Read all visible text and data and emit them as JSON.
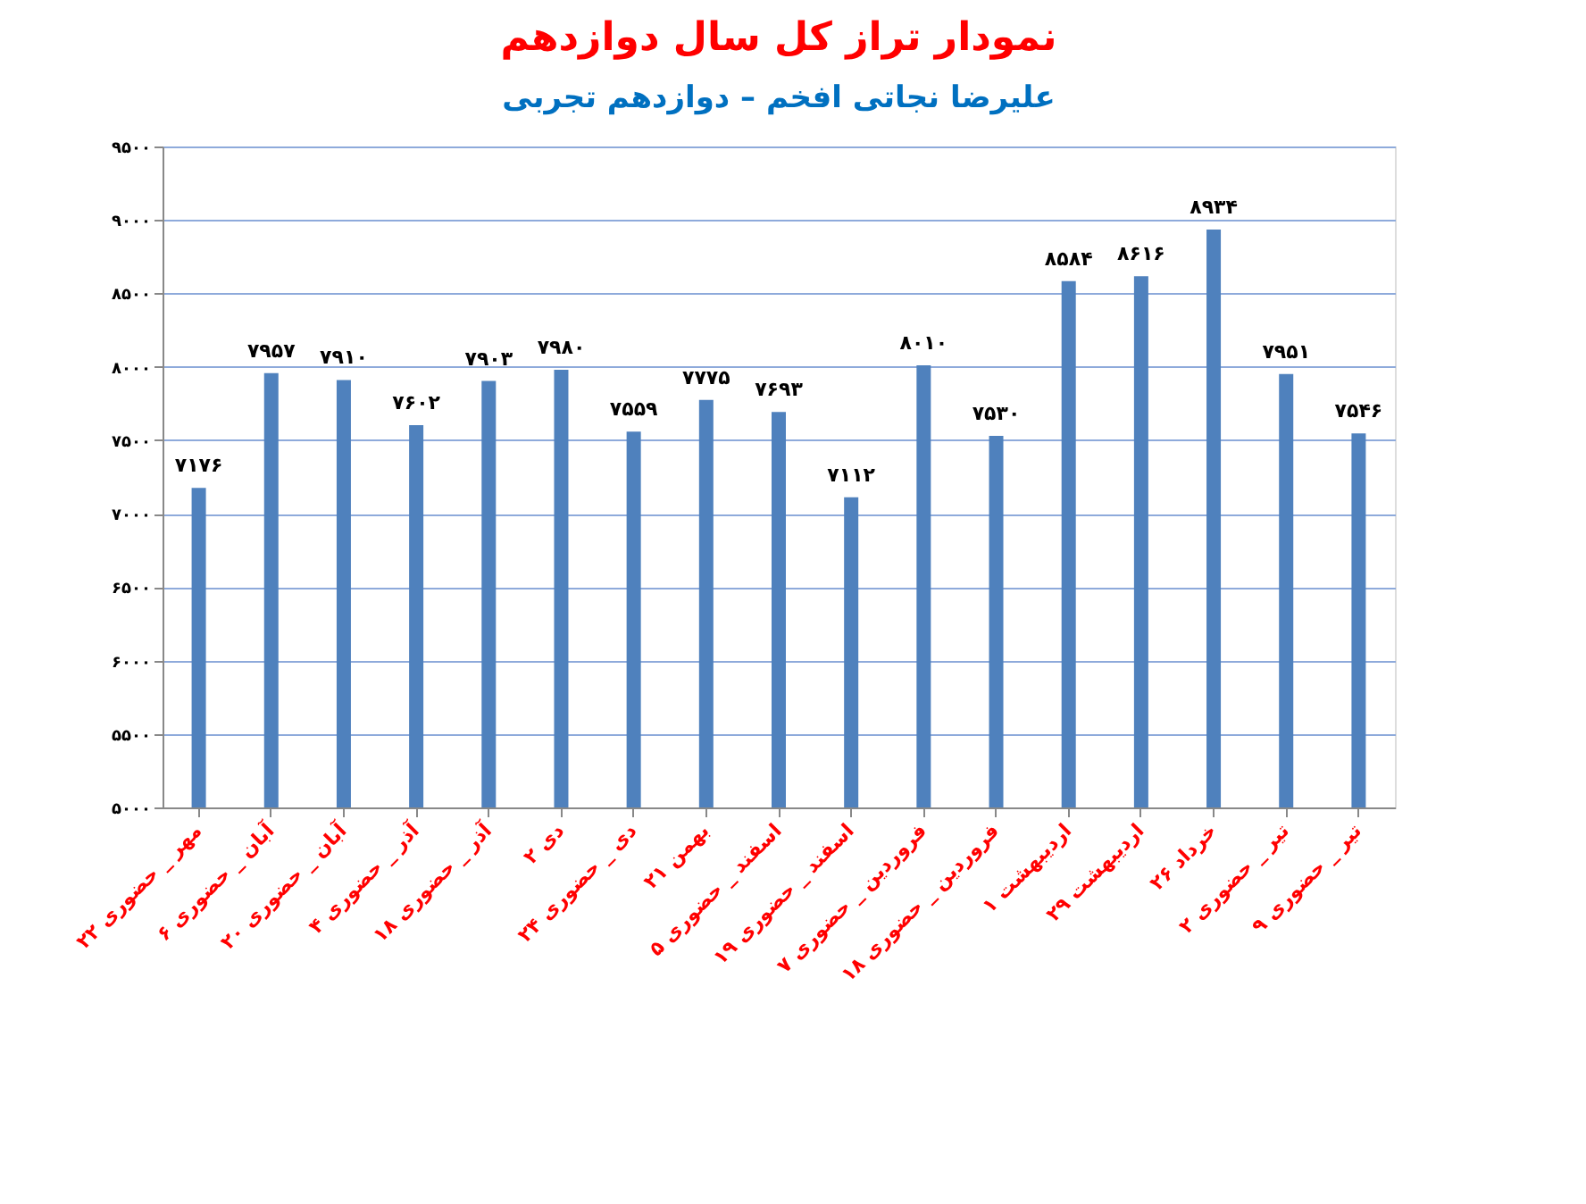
{
  "chart_data": {
    "type": "bar",
    "title": "نمودار تراز کل سال دوازدهم",
    "subtitle": "علیرضا نجاتی افخم – دوازدهم تجربی",
    "categories": [
      "۲۲ مهر _ حضوری",
      "۶ آبان _ حضوری",
      "۲۰ آبان _ حضوری",
      "۴ آذر _ حضوری",
      "۱۸ آذر _ حضوری",
      "۲ دی",
      "۲۴ دی _ حضوری",
      "۲۱ بهمن",
      "۵ اسفند _ حضوری",
      "۱۹ اسفند _ حضوری",
      "۷ فروردین _ حضوری",
      "۱۸ فروردین _ حضوری",
      "۱ اردیبهشت",
      "۲۹ اردیبهشت",
      "۲۶ خرداد",
      "۲ تیر _ حضوری",
      "۹ تیر _ حضوری"
    ],
    "values": [
      7176,
      7957,
      7910,
      7602,
      7903,
      7980,
      7559,
      7775,
      7693,
      7112,
      8010,
      7530,
      8584,
      8616,
      8934,
      7951,
      7546
    ],
    "value_labels": [
      "۷۱۷۶",
      "۷۹۵۷",
      "۷۹۱۰",
      "۷۶۰۲",
      "۷۹۰۳",
      "۷۹۸۰",
      "۷۵۵۹",
      "۷۷۷۵",
      "۷۶۹۳",
      "۷۱۱۲",
      "۸۰۱۰",
      "۷۵۳۰",
      "۸۵۸۴",
      "۸۶۱۶",
      "۸۹۳۴",
      "۷۹۵۱",
      "۷۵۴۶"
    ],
    "color": "#4f81bd",
    "ylim": [
      5000,
      9500
    ],
    "yticks": [
      {
        "value": 5000,
        "label": "۵۰۰۰"
      },
      {
        "value": 5500,
        "label": "۵۵۰۰"
      },
      {
        "value": 6000,
        "label": "۶۰۰۰"
      },
      {
        "value": 6500,
        "label": "۶۵۰۰"
      },
      {
        "value": 7000,
        "label": "۷۰۰۰"
      },
      {
        "value": 7500,
        "label": "۷۵۰۰"
      },
      {
        "value": 8000,
        "label": "۸۰۰۰"
      },
      {
        "value": 8500,
        "label": "۸۵۰۰"
      },
      {
        "value": 9000,
        "label": "۹۰۰۰"
      },
      {
        "value": 9500,
        "label": "۹۵۰۰"
      }
    ],
    "grid": "y",
    "legend": false
  }
}
